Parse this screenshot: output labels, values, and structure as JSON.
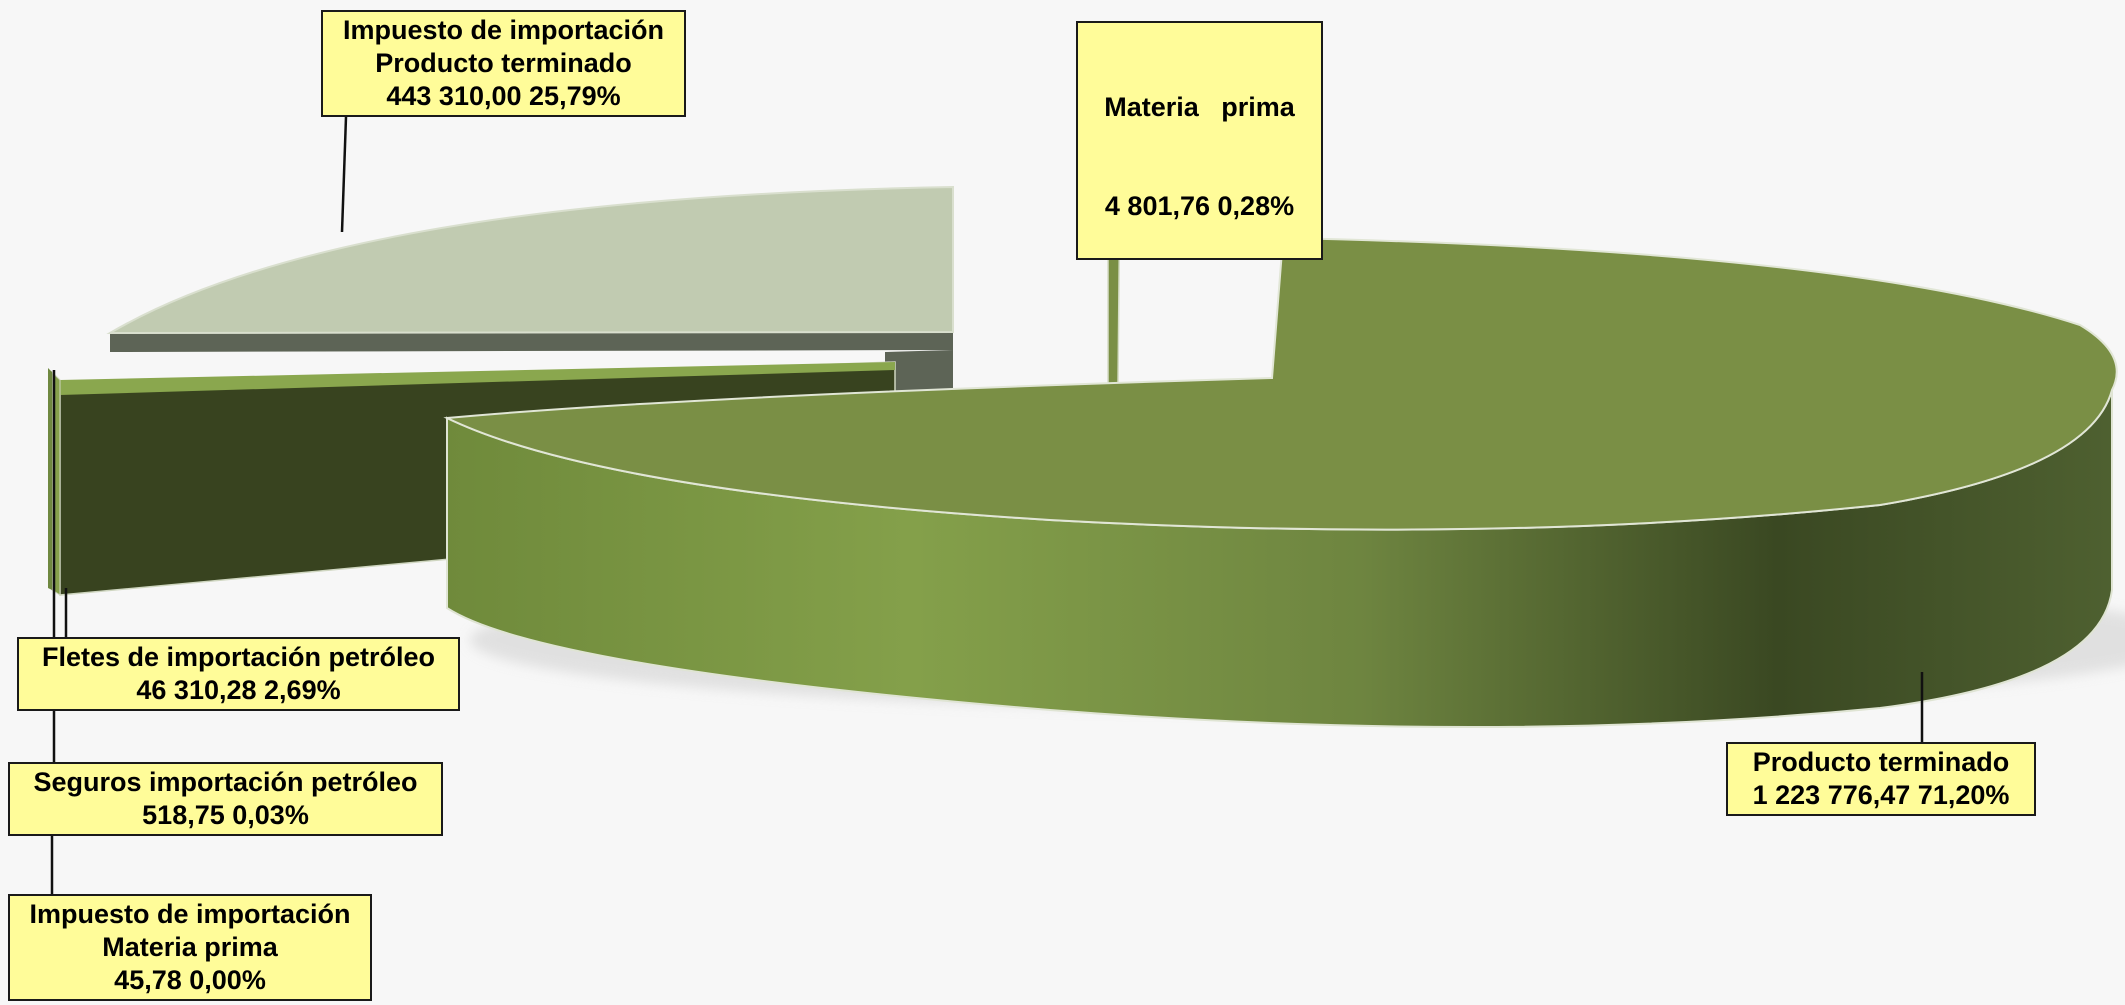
{
  "chart_data": {
    "type": "pie",
    "style": "3d-exploded",
    "title": "",
    "slices": [
      {
        "label_lines": [
          "Producto terminado"
        ],
        "value": 1223776.47,
        "value_text": "1 223 776,47",
        "percent": 71.2,
        "percent_text": "71,20%",
        "color": "#7a8f45"
      },
      {
        "label_lines": [
          "Impuesto de importación",
          "Materia prima"
        ],
        "value": 45.78,
        "value_text": "45,78",
        "percent": 0.0,
        "percent_text": "0,00%",
        "color": "#6f8840"
      },
      {
        "label_lines": [
          "Seguros importación petróleo"
        ],
        "value": 518.75,
        "value_text": "518,75",
        "percent": 0.03,
        "percent_text": "0,03%",
        "color": "#86a04c"
      },
      {
        "label_lines": [
          "Fletes de importación petróleo"
        ],
        "value": 46310.28,
        "value_text": "46 310,28",
        "percent": 2.69,
        "percent_text": "2,69%",
        "color": "#8aa74e"
      },
      {
        "label_lines": [
          "Impuesto de importación",
          "Producto terminado"
        ],
        "value": 443310.0,
        "value_text": "443 310,00",
        "percent": 25.79,
        "percent_text": "25,79%",
        "color": "#c1cbb1"
      },
      {
        "label_lines": [
          "Materia   prima"
        ],
        "value": 4801.76,
        "value_text": "4 801,76",
        "percent": 0.28,
        "percent_text": "0,28%",
        "color": "#7a8f45"
      }
    ]
  }
}
